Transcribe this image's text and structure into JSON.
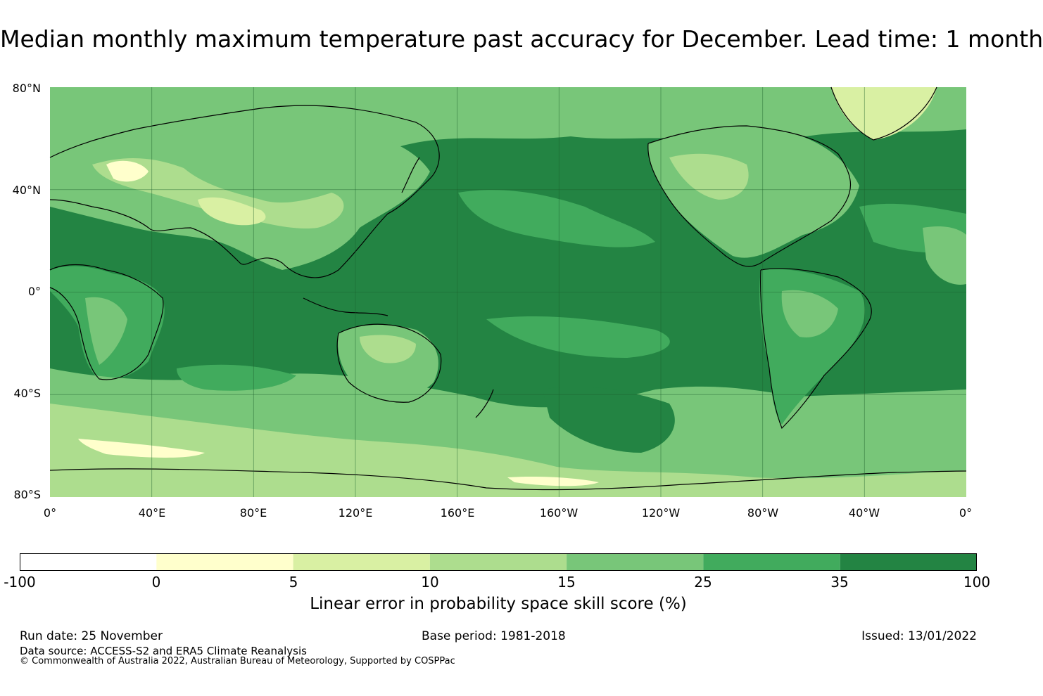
{
  "title": "Median monthly maximum temperature past accuracy for December. Lead time: 1 month",
  "map": {
    "lat_labels": [
      "80°N",
      "40°N",
      "0°",
      "40°S",
      "80°S"
    ],
    "lon_labels": [
      "0°",
      "40°E",
      "80°E",
      "120°E",
      "160°E",
      "160°W",
      "120°W",
      "80°W",
      "40°W",
      "0°"
    ],
    "palette": {
      "ocean_high": "#238443",
      "mid_high": "#41ab5d",
      "mid": "#78c679",
      "low_mid": "#addd8e",
      "low": "#d9f0a3",
      "very_low": "#ffffcc",
      "coast": "#000000",
      "grid": "#1b5e2b"
    }
  },
  "colorbar": {
    "ticks": [
      "-100",
      "0",
      "5",
      "10",
      "15",
      "25",
      "35",
      "100"
    ],
    "colors": [
      "#ffffff",
      "#ffffcc",
      "#d9f0a3",
      "#addd8e",
      "#78c679",
      "#41ab5d",
      "#238443"
    ],
    "label": "Linear error in probability space skill score (%)"
  },
  "footer": {
    "run_date": "Run date: 25 November",
    "base_period": "Base period: 1981-2018",
    "issued": "Issued: 13/01/2022",
    "data_source": "Data source: ACCESS-S2 and ERA5 Climate Reanalysis",
    "copyright": "© Commonwealth of Australia 2022, Australian Bureau of Meteorology, Supported by COSPPac"
  }
}
